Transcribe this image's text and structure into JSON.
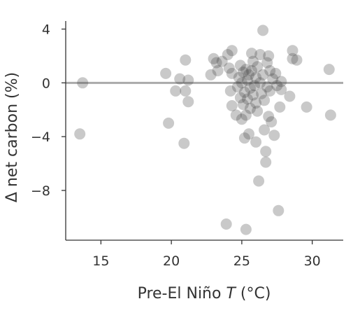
{
  "chart_data": {
    "type": "scatter",
    "title": "",
    "xlabel": "Pre-El Niño T (°C)",
    "xlabel_parts": {
      "prefix": "Pre-El Niño ",
      "italic": "T",
      "suffix": " (°C)"
    },
    "ylabel": "Δ net carbon (%)",
    "xlim": [
      12.5,
      32.2
    ],
    "ylim": [
      -11.7,
      4.6
    ],
    "xticks": [
      15,
      20,
      25,
      30
    ],
    "xtick_labels": [
      "15",
      "20",
      "25",
      "30"
    ],
    "yticks": [
      4,
      0,
      -4,
      -8
    ],
    "ytick_labels": [
      "4",
      "0",
      "−4",
      "−8"
    ],
    "reference_line": {
      "y": 0,
      "color": "#aaaaaa"
    },
    "grid": false,
    "legend": "none",
    "point_color": "#3c3c3c",
    "points": [
      {
        "x": 13.7,
        "y": 0.0
      },
      {
        "x": 13.5,
        "y": -3.8
      },
      {
        "x": 19.6,
        "y": 0.7
      },
      {
        "x": 19.8,
        "y": -3.0
      },
      {
        "x": 20.3,
        "y": -0.6
      },
      {
        "x": 20.6,
        "y": 0.3
      },
      {
        "x": 20.9,
        "y": -4.5
      },
      {
        "x": 21.0,
        "y": 1.7
      },
      {
        "x": 21.0,
        "y": -0.6
      },
      {
        "x": 21.2,
        "y": 0.2
      },
      {
        "x": 21.2,
        "y": -1.4
      },
      {
        "x": 22.8,
        "y": 0.6
      },
      {
        "x": 23.0,
        "y": 1.8
      },
      {
        "x": 23.2,
        "y": 1.5
      },
      {
        "x": 23.3,
        "y": 0.9
      },
      {
        "x": 23.6,
        "y": 1.6
      },
      {
        "x": 23.9,
        "y": -10.5
      },
      {
        "x": 24.0,
        "y": 2.1
      },
      {
        "x": 24.3,
        "y": 2.4
      },
      {
        "x": 24.1,
        "y": 1.1
      },
      {
        "x": 24.3,
        "y": 0.7
      },
      {
        "x": 24.2,
        "y": -0.6
      },
      {
        "x": 24.3,
        "y": -1.7
      },
      {
        "x": 24.6,
        "y": -2.4
      },
      {
        "x": 24.7,
        "y": -0.3
      },
      {
        "x": 24.8,
        "y": 0.4
      },
      {
        "x": 24.9,
        "y": -1.1
      },
      {
        "x": 24.9,
        "y": 1.3
      },
      {
        "x": 25.0,
        "y": 0.0
      },
      {
        "x": 25.0,
        "y": -2.7
      },
      {
        "x": 25.1,
        "y": -1.6
      },
      {
        "x": 25.1,
        "y": 0.8
      },
      {
        "x": 25.2,
        "y": -0.7
      },
      {
        "x": 25.2,
        "y": -4.1
      },
      {
        "x": 25.3,
        "y": 1.0
      },
      {
        "x": 25.3,
        "y": -2.4
      },
      {
        "x": 25.3,
        "y": -10.9
      },
      {
        "x": 25.4,
        "y": 0.2
      },
      {
        "x": 25.4,
        "y": -1.2
      },
      {
        "x": 25.5,
        "y": 0.6
      },
      {
        "x": 25.5,
        "y": -3.8
      },
      {
        "x": 25.6,
        "y": -0.4
      },
      {
        "x": 25.6,
        "y": -1.9
      },
      {
        "x": 25.7,
        "y": 2.2
      },
      {
        "x": 25.7,
        "y": 0.9
      },
      {
        "x": 25.8,
        "y": -0.9
      },
      {
        "x": 25.8,
        "y": 1.6
      },
      {
        "x": 25.9,
        "y": -0.2
      },
      {
        "x": 26.0,
        "y": 0.4
      },
      {
        "x": 26.0,
        "y": -1.5
      },
      {
        "x": 26.0,
        "y": -4.4
      },
      {
        "x": 26.1,
        "y": 1.2
      },
      {
        "x": 26.1,
        "y": -2.1
      },
      {
        "x": 26.2,
        "y": -7.3
      },
      {
        "x": 26.3,
        "y": 0.0
      },
      {
        "x": 26.3,
        "y": 2.1
      },
      {
        "x": 26.4,
        "y": -0.8
      },
      {
        "x": 26.5,
        "y": 3.9
      },
      {
        "x": 26.5,
        "y": 0.6
      },
      {
        "x": 26.6,
        "y": -1.3
      },
      {
        "x": 26.6,
        "y": -3.5
      },
      {
        "x": 26.7,
        "y": -5.1
      },
      {
        "x": 26.7,
        "y": -5.9
      },
      {
        "x": 26.8,
        "y": 1.5
      },
      {
        "x": 26.8,
        "y": -0.3
      },
      {
        "x": 26.9,
        "y": 2.0
      },
      {
        "x": 26.9,
        "y": -2.5
      },
      {
        "x": 27.0,
        "y": 0.9
      },
      {
        "x": 27.0,
        "y": -0.6
      },
      {
        "x": 27.1,
        "y": -2.9
      },
      {
        "x": 27.2,
        "y": 0.3
      },
      {
        "x": 27.3,
        "y": -3.9
      },
      {
        "x": 27.4,
        "y": 0.7
      },
      {
        "x": 27.5,
        "y": -0.2
      },
      {
        "x": 27.6,
        "y": -9.5
      },
      {
        "x": 27.7,
        "y": -1.8
      },
      {
        "x": 27.8,
        "y": 0.1
      },
      {
        "x": 27.8,
        "y": -0.5
      },
      {
        "x": 28.4,
        "y": -1.0
      },
      {
        "x": 28.6,
        "y": 2.4
      },
      {
        "x": 28.6,
        "y": 1.8
      },
      {
        "x": 28.9,
        "y": 1.7
      },
      {
        "x": 29.6,
        "y": -1.8
      },
      {
        "x": 31.2,
        "y": 1.0
      },
      {
        "x": 31.3,
        "y": -2.4
      }
    ]
  }
}
